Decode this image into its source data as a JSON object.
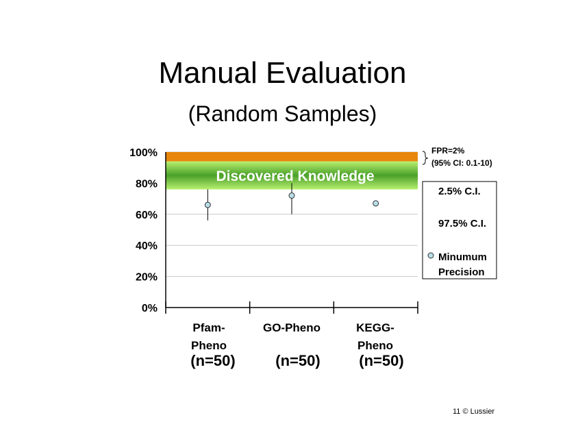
{
  "title": "Manual Evaluation",
  "subtitle": "(Random Samples)",
  "colors": {
    "fpr_band": "#e8860c",
    "knowledge_band_center": "#4aa02a",
    "knowledge_band_edge": "#b8f070",
    "marker_fill": "#b7dde8",
    "gridline": "#c8c8c8"
  },
  "band": {
    "label": "Discovered Knowledge"
  },
  "fpr_annotation": {
    "line1": "FPR=2%",
    "line2": "(95% CI: 0.1-10)"
  },
  "legend": {
    "items": [
      "2.5% C.I.",
      "97.5% C.I.",
      "Minumum",
      "Precision"
    ]
  },
  "footer": "11  © Lussier",
  "chart_data": {
    "type": "scatter",
    "categories": [
      [
        "Pfam-",
        "Pheno"
      ],
      [
        "GO-Pheno"
      ],
      [
        "KEGG-",
        "Pheno"
      ]
    ],
    "sample_sizes": [
      "(n=50)",
      "(n=50)",
      "(n=50)"
    ],
    "ytick_labels": [
      "0%",
      "20%",
      "40%",
      "60%",
      "80%",
      "100%"
    ],
    "ylim": [
      0,
      100
    ],
    "grid": true,
    "series": [
      {
        "name": "Minumum Precision",
        "values": [
          66,
          72,
          67
        ]
      }
    ],
    "ci_low": [
      56,
      60,
      null
    ],
    "ci_high": [
      76,
      80,
      null
    ],
    "bands": [
      {
        "from": 94,
        "to": 100,
        "label": "FPR=2%"
      },
      {
        "from": 76,
        "to": 94,
        "label": "Discovered Knowledge"
      }
    ]
  }
}
